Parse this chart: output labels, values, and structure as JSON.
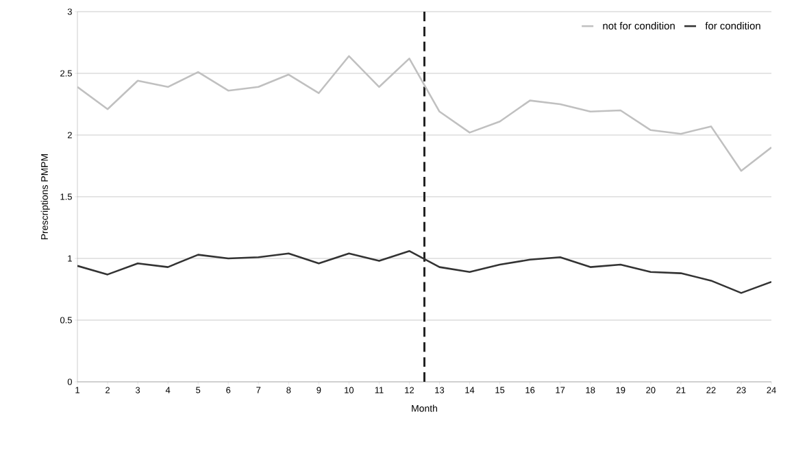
{
  "chart_data": {
    "type": "line",
    "xlabel": "Month",
    "ylabel": "Prescriptions PMPM",
    "x": [
      1,
      2,
      3,
      4,
      5,
      6,
      7,
      8,
      9,
      10,
      11,
      12,
      13,
      14,
      15,
      16,
      17,
      18,
      19,
      20,
      21,
      22,
      23,
      24
    ],
    "series": [
      {
        "name": "not for condition",
        "color": "#c0c0c0",
        "values": [
          2.39,
          2.21,
          2.44,
          2.39,
          2.51,
          2.36,
          2.39,
          2.49,
          2.34,
          2.64,
          2.39,
          2.62,
          2.19,
          2.02,
          2.11,
          2.28,
          2.25,
          2.19,
          2.2,
          2.04,
          2.01,
          2.07,
          1.71,
          1.9
        ]
      },
      {
        "name": "for condition",
        "color": "#333333",
        "values": [
          0.94,
          0.87,
          0.96,
          0.93,
          1.03,
          1.0,
          1.01,
          1.04,
          0.96,
          1.04,
          0.98,
          1.06,
          0.93,
          0.89,
          0.95,
          0.99,
          1.01,
          0.93,
          0.95,
          0.89,
          0.88,
          0.82,
          0.72,
          0.81
        ]
      }
    ],
    "xlim": [
      1,
      24
    ],
    "xticks": [
      1,
      2,
      3,
      4,
      5,
      6,
      7,
      8,
      9,
      10,
      11,
      12,
      13,
      14,
      15,
      16,
      17,
      18,
      19,
      20,
      21,
      22,
      23,
      24
    ],
    "ylim": [
      0,
      3
    ],
    "yticks": [
      0,
      0.5,
      1,
      1.5,
      2,
      2.5,
      3
    ],
    "ref_lines": [
      {
        "axis": "x",
        "value": 12.5,
        "color": "#222222",
        "line_style": "dashed"
      }
    ],
    "grid": "y",
    "legend": "top right",
    "marker": "none",
    "line_style": "solid"
  }
}
